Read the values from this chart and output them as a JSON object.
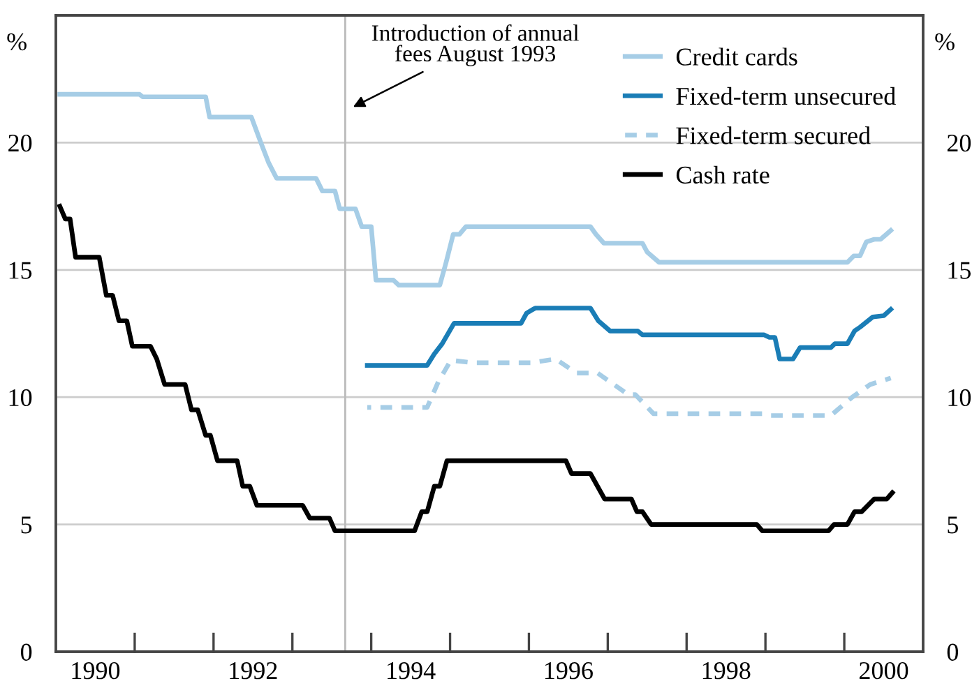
{
  "chart_data": {
    "type": "line",
    "ylabel": "%",
    "y2label": "%",
    "xlim": [
      1990,
      2001
    ],
    "xticks": [
      {
        "value": 1990.5,
        "label": "1990"
      },
      {
        "value": 1991,
        "label": null
      },
      {
        "value": 1992,
        "label": null
      },
      {
        "value": 1992.5,
        "label": "1992"
      },
      {
        "value": 1993,
        "label": null
      },
      {
        "value": 1994,
        "label": null
      },
      {
        "value": 1994.5,
        "label": "1994"
      },
      {
        "value": 1995,
        "label": null
      },
      {
        "value": 1996,
        "label": null
      },
      {
        "value": 1996.5,
        "label": "1996"
      },
      {
        "value": 1997,
        "label": null
      },
      {
        "value": 1998,
        "label": null
      },
      {
        "value": 1998.5,
        "label": "1998"
      },
      {
        "value": 1999,
        "label": null
      },
      {
        "value": 2000,
        "label": null
      },
      {
        "value": 2000.5,
        "label": "2000"
      }
    ],
    "ylim": [
      0,
      25
    ],
    "yticks": [
      0,
      5,
      10,
      15,
      20
    ],
    "y2lim": [
      0,
      25
    ],
    "y2ticks": [
      0,
      5,
      10,
      15,
      20
    ],
    "grid": "y",
    "legend": "top right",
    "marker": "none",
    "ref_lines": [
      {
        "axis": "x",
        "value": 1993.67,
        "label": "Introduction of annual\nfees August 1993",
        "color": "#bbbbbb"
      }
    ],
    "series": [
      {
        "name": "Credit cards",
        "color": "#a6cde6",
        "line_style": "solid",
        "x": [
          1990.05,
          1991.06,
          1991.1,
          1991.9,
          1991.95,
          1992.48,
          1992.6,
          1992.7,
          1992.8,
          1993.3,
          1993.38,
          1993.54,
          1993.6,
          1993.8,
          1993.88,
          1994.0,
          1994.06,
          1994.28,
          1994.35,
          1994.87,
          1994.95,
          1995.04,
          1995.12,
          1995.2,
          1996.78,
          1996.85,
          1996.95,
          1997.44,
          1997.5,
          1997.65,
          2000.04,
          2000.12,
          2000.2,
          2000.28,
          2000.38,
          2000.46,
          2000.59
        ],
        "values": [
          21.9,
          21.9,
          21.8,
          21.8,
          21.0,
          21.0,
          20.0,
          19.2,
          18.6,
          18.6,
          18.1,
          18.1,
          17.4,
          17.4,
          16.7,
          16.7,
          14.6,
          14.6,
          14.4,
          14.4,
          15.3,
          16.4,
          16.4,
          16.7,
          16.7,
          16.4,
          16.05,
          16.05,
          15.7,
          15.3,
          15.3,
          15.55,
          15.55,
          16.1,
          16.2,
          16.2,
          16.55
        ]
      },
      {
        "name": "Fixed-term unsecured",
        "color": "#1a7db6",
        "line_style": "solid",
        "x": [
          1993.95,
          1994.71,
          1994.8,
          1994.9,
          1995.05,
          1995.9,
          1995.97,
          1996.08,
          1996.78,
          1996.88,
          1997.03,
          1997.38,
          1997.44,
          1998.98,
          1999.05,
          1999.12,
          1999.18,
          1999.35,
          1999.44,
          1999.83,
          1999.88,
          2000.04,
          2000.13,
          2000.2,
          2000.36,
          2000.5,
          2000.59
        ],
        "values": [
          11.25,
          11.25,
          11.7,
          12.1,
          12.9,
          12.9,
          13.3,
          13.5,
          13.5,
          13.0,
          12.6,
          12.6,
          12.45,
          12.45,
          12.35,
          12.35,
          11.5,
          11.5,
          11.95,
          11.95,
          12.1,
          12.1,
          12.6,
          12.75,
          13.15,
          13.2,
          13.45
        ]
      },
      {
        "name": "Fixed-term secured",
        "color": "#a6cde6",
        "line_style": "dashed",
        "x": [
          1993.95,
          1994.71,
          1994.85,
          1995.01,
          1995.3,
          1996.02,
          1996.34,
          1996.6,
          1996.87,
          1997.26,
          1997.35,
          1997.58,
          1998.98,
          1999.05,
          1999.83,
          2000.1,
          2000.33,
          2000.59
        ],
        "values": [
          9.6,
          9.6,
          10.6,
          11.45,
          11.35,
          11.35,
          11.5,
          10.95,
          10.95,
          10.1,
          10.1,
          9.35,
          9.35,
          9.28,
          9.28,
          10.0,
          10.5,
          10.75
        ]
      },
      {
        "name": "Cash rate",
        "color": "#000000",
        "line_style": "solid",
        "x": [
          1990.05,
          1990.12,
          1990.18,
          1990.25,
          1990.3,
          1990.55,
          1990.64,
          1990.72,
          1990.8,
          1990.9,
          1990.97,
          1991.2,
          1991.28,
          1991.38,
          1991.64,
          1991.72,
          1991.8,
          1991.9,
          1991.96,
          1992.05,
          1992.3,
          1992.37,
          1992.46,
          1992.55,
          1993.13,
          1993.22,
          1993.47,
          1993.54,
          1994.55,
          1994.64,
          1994.71,
          1994.8,
          1994.87,
          1994.96,
          1996.47,
          1996.54,
          1996.78,
          1996.96,
          1997.3,
          1997.37,
          1997.44,
          1997.55,
          1998.89,
          1998.96,
          1999.8,
          1999.87,
          2000.04,
          2000.13,
          2000.22,
          2000.38,
          2000.54,
          2000.61
        ],
        "values": [
          17.5,
          17.0,
          17.0,
          15.5,
          15.5,
          15.5,
          14.0,
          14.0,
          13.0,
          13.0,
          12.0,
          12.0,
          11.5,
          10.5,
          10.5,
          9.5,
          9.5,
          8.5,
          8.5,
          7.5,
          7.5,
          6.5,
          6.5,
          5.75,
          5.75,
          5.25,
          5.25,
          4.75,
          4.75,
          5.5,
          5.5,
          6.5,
          6.5,
          7.5,
          7.5,
          7.0,
          7.0,
          6.0,
          6.0,
          5.5,
          5.5,
          5.0,
          5.0,
          4.75,
          4.75,
          5.0,
          5.0,
          5.5,
          5.5,
          6.0,
          6.0,
          6.25
        ]
      }
    ]
  }
}
